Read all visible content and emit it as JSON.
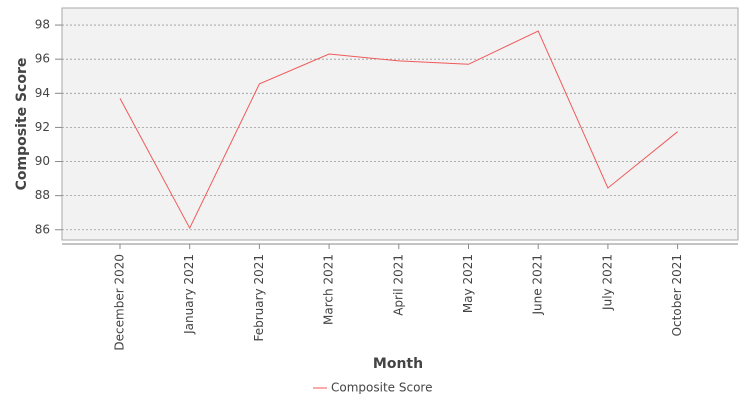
{
  "chart_data": {
    "type": "line",
    "y_label": "Composite Score",
    "x_label": "Month",
    "categories": [
      "December 2020",
      "January 2021",
      "February 2021",
      "March 2021",
      "April 2021",
      "May 2021",
      "June 2021",
      "July 2021",
      "October 2021"
    ],
    "series": [
      {
        "name": "Composite Score",
        "color": "#f05a5a",
        "values": [
          93.7,
          86.1,
          94.55,
          96.3,
          95.9,
          95.7,
          97.65,
          88.45,
          91.75
        ]
      }
    ],
    "ylim": [
      85.4,
      99.0
    ],
    "yticks": [
      86,
      88,
      90,
      92,
      94,
      96,
      98
    ],
    "grid": true,
    "legend": "bottom"
  }
}
